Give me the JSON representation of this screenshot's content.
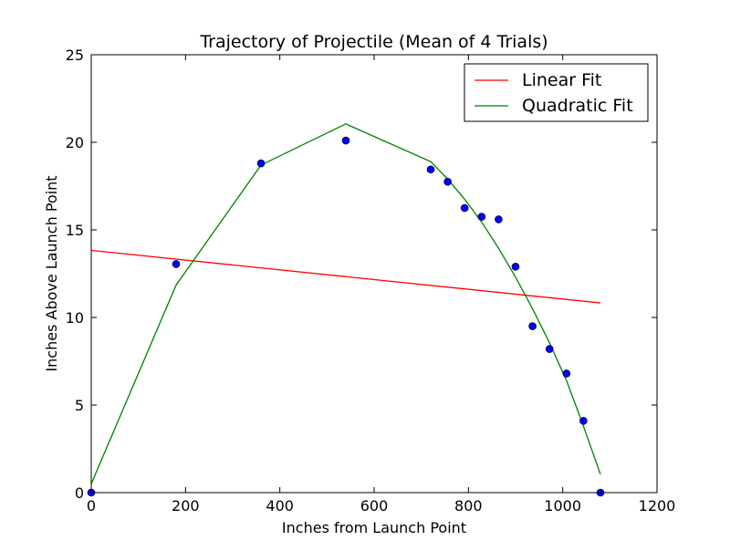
{
  "chart_data": {
    "type": "scatter",
    "title": "Trajectory of Projectile (Mean of 4 Trials)",
    "xlabel": "Inches from Launch Point",
    "ylabel": "Inches Above Launch Point",
    "xlim": [
      0,
      1200
    ],
    "ylim": [
      0,
      25
    ],
    "x_ticks": [
      "0",
      "200",
      "400",
      "600",
      "800",
      "1000",
      "1200"
    ],
    "y_ticks": [
      "0",
      "5",
      "10",
      "15",
      "20",
      "25"
    ],
    "grid": false,
    "legend_position": "top-right",
    "points": {
      "color": "#0000ff",
      "x": [
        0,
        180,
        360,
        540,
        720,
        756,
        792,
        828,
        864,
        900,
        936,
        972,
        1008,
        1044,
        1080
      ],
      "y": [
        0.0,
        13.05,
        18.8,
        20.1,
        18.45,
        17.75,
        16.25,
        15.75,
        15.6,
        12.9,
        9.5,
        8.2,
        6.8,
        4.1,
        0.0
      ]
    },
    "series": [
      {
        "name": "Linear Fit",
        "color": "#ff0000",
        "x": [
          0,
          1080
        ],
        "y": [
          13.83,
          10.83
        ]
      },
      {
        "name": "Quadratic Fit",
        "color": "#008000",
        "x": [
          0,
          180,
          360,
          540,
          720,
          756,
          792,
          828,
          864,
          900,
          936,
          972,
          1008,
          1044,
          1080
        ],
        "y": [
          0.5,
          11.85,
          18.7,
          21.05,
          18.9,
          17.9,
          16.75,
          15.45,
          13.95,
          12.3,
          10.5,
          8.55,
          6.4,
          3.8,
          1.05
        ]
      }
    ]
  }
}
